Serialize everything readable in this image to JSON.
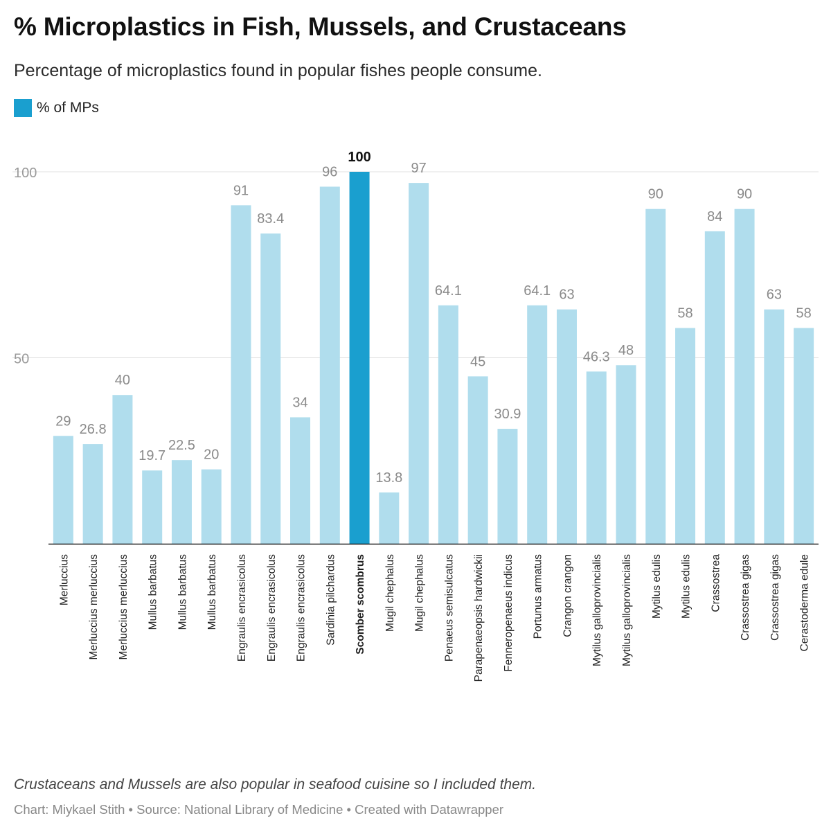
{
  "header": {
    "title": "% Microplastics in Fish, Mussels, and Crustaceans",
    "subtitle": "Percentage of microplastics found in popular fishes people consume."
  },
  "legend": {
    "label": "% of MPs",
    "color": "#1a9fcf"
  },
  "colors": {
    "bar": "#b0dded",
    "highlight": "#1a9fcf",
    "value_label": "#8a8a8a",
    "grid": "#e0e0e0",
    "axis": "#222222"
  },
  "chart_data": {
    "type": "bar",
    "categories": [
      "Merluccius",
      "Merluccius merluccius",
      "Merluccius merluccius",
      "Mullus barbatus",
      "Mullus barbatus",
      "Mullus barbatus",
      "Engraulis encrasicolus",
      "Engraulis encrasicolus",
      "Engraulis encrasicolus",
      "Sardinia pilchardus",
      "Scomber scombrus",
      "Mugil chephalus",
      "Mugil chephalus",
      "Penaeus semisulcatus",
      "Parapenaeopsis hardwickii",
      "Fenneropenaeus indicus",
      "Portunus armatus",
      "Crangon crangon",
      "Mytilus galloprovincialis",
      "Mytilus galloprovincialis",
      "Mytilus edulis",
      "Mytilus edulis",
      "Crassostrea",
      "Crassostrea gigas",
      "Crassostrea gigas",
      "Cerastoderma edule"
    ],
    "series": [
      {
        "name": "% of MPs",
        "values": [
          29,
          26.8,
          40,
          19.7,
          22.5,
          20,
          91,
          83.4,
          34,
          96,
          100,
          13.8,
          97,
          64.1,
          45,
          30.9,
          64.1,
          63,
          46.3,
          48,
          90,
          58,
          84,
          90,
          63,
          58
        ]
      }
    ],
    "highlighted_index": 10,
    "ylim": [
      0,
      100
    ],
    "yticks": [
      50,
      100
    ],
    "grid": true,
    "legend_position": "top-left",
    "xlabel": "",
    "ylabel": ""
  },
  "footer": {
    "note": "Crustaceans and Mussels are also popular in seafood cuisine so I included them.",
    "chart_credit": "Chart: Miykael Stith",
    "source": "Source: National Library of Medicine",
    "created_with": "Created with Datawrapper",
    "separator": " • "
  }
}
